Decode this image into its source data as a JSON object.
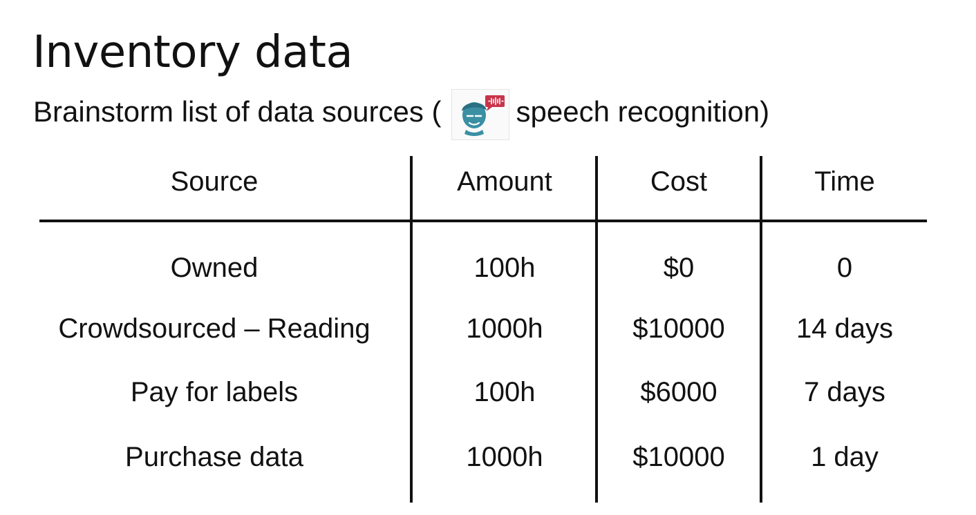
{
  "slide": {
    "title": "Inventory data",
    "subtitle": {
      "prefix": "Brainstorm list of data sources (",
      "icon": "speech-recognition-icon",
      "suffix": "speech recognition)"
    }
  },
  "table": {
    "headers": [
      "Source",
      "Amount",
      "Cost",
      "Time"
    ],
    "rows": [
      [
        "Owned",
        "100h",
        "$0",
        "0"
      ],
      [
        "Crowdsourced – Reading",
        "1000h",
        "$10000",
        "14 days"
      ],
      [
        "Pay for labels",
        "100h",
        "$6000",
        "7 days"
      ],
      [
        "Purchase data",
        "1000h",
        "$10000",
        "1 day"
      ]
    ]
  },
  "colors": {
    "text": "#111111",
    "icon_head": "#3a8fa3",
    "icon_bubble": "#c9344a"
  }
}
